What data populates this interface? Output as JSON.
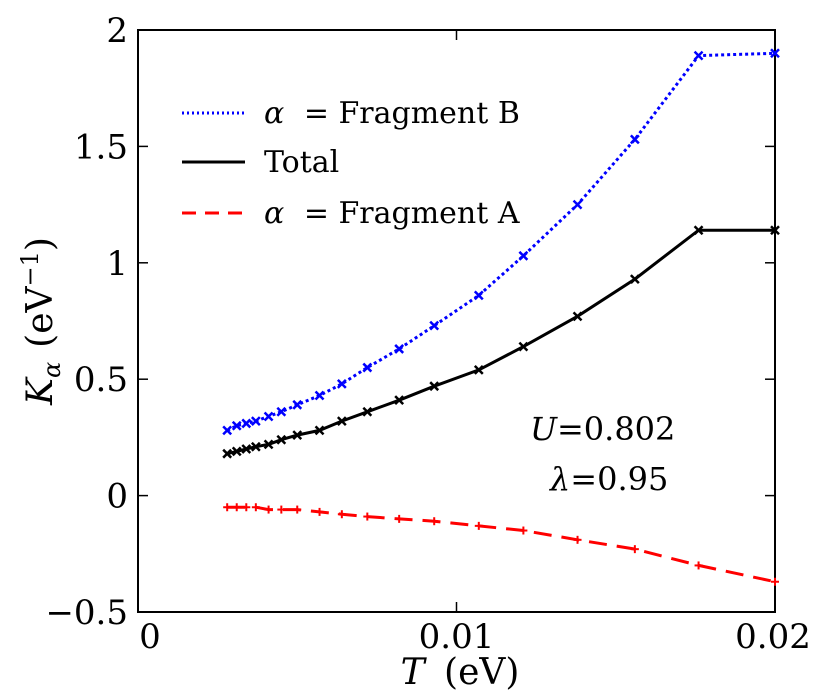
{
  "chart_data": {
    "type": "line",
    "xlabel": {
      "var": "T",
      "unit": "(eV)"
    },
    "ylabel": {
      "var": "K",
      "sub": "α",
      "unit": "(eV",
      "sup": "−1",
      "close": ")"
    },
    "xlim": [
      0,
      0.02
    ],
    "ylim": [
      -0.5,
      2
    ],
    "xticks": [
      0,
      0.01,
      0.02
    ],
    "xtick_labels": [
      "0",
      "0.01",
      "0.02"
    ],
    "yticks": [
      -0.5,
      0,
      0.5,
      1,
      1.5,
      2
    ],
    "ytick_labels": [
      "−0.5",
      "0",
      "0.5",
      "1",
      "1.5",
      "2"
    ],
    "legend_position": "top-left",
    "series": [
      {
        "name": "α = Fragment B",
        "legend_prefix": "α",
        "legend_text": "= Fragment B",
        "color": "#0000ff",
        "linestyle": "dotted",
        "marker": "x",
        "x": [
          0.0028,
          0.0031,
          0.0034,
          0.0037,
          0.0041,
          0.0045,
          0.005,
          0.0057,
          0.0064,
          0.0072,
          0.0082,
          0.0093,
          0.0107,
          0.0121,
          0.0138,
          0.0156,
          0.0176,
          0.02
        ],
        "y": [
          0.28,
          0.3,
          0.31,
          0.32,
          0.34,
          0.36,
          0.39,
          0.43,
          0.48,
          0.55,
          0.63,
          0.73,
          0.86,
          1.03,
          1.25,
          1.53,
          1.89,
          1.9
        ]
      },
      {
        "name": "Total",
        "legend_prefix": "",
        "legend_text": "Total",
        "color": "#000000",
        "linestyle": "solid",
        "marker": "x",
        "x": [
          0.0028,
          0.0031,
          0.0034,
          0.0037,
          0.0041,
          0.0045,
          0.005,
          0.0057,
          0.0064,
          0.0072,
          0.0082,
          0.0093,
          0.0107,
          0.0121,
          0.0138,
          0.0156,
          0.0176,
          0.02
        ],
        "y": [
          0.18,
          0.19,
          0.2,
          0.21,
          0.22,
          0.24,
          0.26,
          0.28,
          0.32,
          0.36,
          0.41,
          0.47,
          0.54,
          0.64,
          0.77,
          0.93,
          1.14,
          1.14
        ]
      },
      {
        "name": "α = Fragment A",
        "legend_prefix": "α",
        "legend_text": "= Fragment A",
        "color": "#ff0000",
        "linestyle": "dashed",
        "marker": "+",
        "x": [
          0.0028,
          0.0031,
          0.0034,
          0.0037,
          0.0041,
          0.0045,
          0.005,
          0.0057,
          0.0064,
          0.0072,
          0.0082,
          0.0093,
          0.0107,
          0.0121,
          0.0138,
          0.0156,
          0.0176,
          0.02
        ],
        "y": [
          -0.05,
          -0.05,
          -0.05,
          -0.05,
          -0.06,
          -0.06,
          -0.06,
          -0.07,
          -0.08,
          -0.09,
          -0.1,
          -0.11,
          -0.13,
          -0.15,
          -0.19,
          -0.23,
          -0.3,
          -0.37
        ]
      }
    ],
    "annotations": {
      "U": {
        "var": "U",
        "text": "=0.802"
      },
      "lambda": {
        "var": "λ",
        "text": "=0.95"
      }
    }
  }
}
